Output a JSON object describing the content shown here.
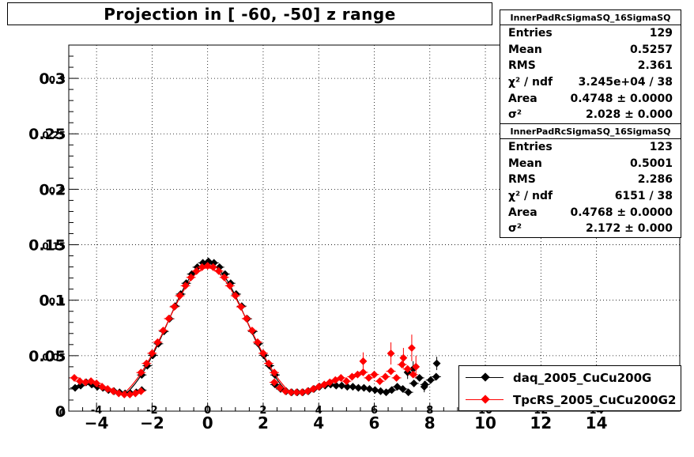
{
  "title": "Projection in [ -60, -50] z range",
  "stats_boxes": [
    {
      "header": "InnerPadRcSigmaSQ_16SigmaSQ",
      "rows": [
        {
          "label": "Entries",
          "value": "129"
        },
        {
          "label": "Mean",
          "value": "0.5257"
        },
        {
          "label": "RMS",
          "value": "2.361"
        },
        {
          "label": "χ² / ndf",
          "value": "3.245e+04 / 38"
        },
        {
          "label": "Area",
          "value": "0.4748 ± 0.0000"
        },
        {
          "label": "σ²",
          "value": "2.028 ± 0.000"
        }
      ]
    },
    {
      "header": "InnerPadRcSigmaSQ_16SigmaSQ",
      "rows": [
        {
          "label": "Entries",
          "value": "123"
        },
        {
          "label": "Mean",
          "value": "0.5001"
        },
        {
          "label": "RMS",
          "value": "2.286"
        },
        {
          "label": "χ² / ndf",
          "value": "6151 / 38"
        },
        {
          "label": "Area",
          "value": "0.4768 ± 0.0000"
        },
        {
          "label": "σ²",
          "value": "2.172 ± 0.000"
        }
      ]
    }
  ],
  "legend": [
    {
      "label": "daq_2005_CuCu200G",
      "color": "#000000"
    },
    {
      "label": "TpcRS_2005_CuCu200G2",
      "color": "#ff0000"
    }
  ],
  "chart_data": {
    "type": "scatter",
    "title": "Projection in [ -60, -50] z range",
    "xlim": [
      -5,
      17
    ],
    "ylim": [
      0,
      0.33
    ],
    "x_ticks_outer": [
      -4,
      -2,
      0,
      2,
      4,
      6,
      8,
      10,
      12,
      14
    ],
    "x_ticks_inner": [
      -4,
      -2,
      0,
      2,
      4,
      6,
      8,
      10,
      12,
      14
    ],
    "y_ticks_inner": [
      0,
      0.05,
      0.1,
      0.15,
      0.2,
      0.25,
      0.3
    ],
    "y_ticks_outer": [
      0,
      0.05,
      0.1,
      0.15,
      0.2,
      0.25,
      0.3
    ],
    "grid": true,
    "series": [
      {
        "name": "daq_2005_CuCu200G",
        "color": "#000000",
        "gauss": {
          "area": 0.4748,
          "sigma2": 2.028,
          "mean": 0.0
        },
        "tail": [
          [
            -4.8,
            0.021
          ],
          [
            -4.6,
            0.023
          ],
          [
            -4.4,
            0.026
          ],
          [
            -4.2,
            0.024
          ],
          [
            -4.0,
            0.022
          ],
          [
            -3.8,
            0.021
          ],
          [
            -3.6,
            0.019
          ],
          [
            -3.4,
            0.018
          ],
          [
            -3.2,
            0.017
          ],
          [
            -3.0,
            0.016
          ],
          [
            -2.8,
            0.016
          ],
          [
            -2.6,
            0.017
          ],
          [
            -2.4,
            0.019
          ],
          [
            2.4,
            0.024
          ],
          [
            2.6,
            0.02
          ],
          [
            2.8,
            0.018
          ],
          [
            3.0,
            0.017
          ],
          [
            3.2,
            0.017
          ],
          [
            3.4,
            0.017
          ],
          [
            3.6,
            0.018
          ],
          [
            3.8,
            0.02
          ],
          [
            4.0,
            0.022
          ],
          [
            4.2,
            0.023
          ],
          [
            4.4,
            0.024
          ],
          [
            4.6,
            0.023
          ],
          [
            4.8,
            0.023
          ],
          [
            5.0,
            0.022
          ],
          [
            5.2,
            0.022
          ],
          [
            5.4,
            0.021
          ],
          [
            5.6,
            0.021
          ],
          [
            5.8,
            0.02
          ],
          [
            6.0,
            0.019
          ],
          [
            6.2,
            0.018
          ],
          [
            6.4,
            0.017
          ],
          [
            6.6,
            0.019
          ],
          [
            6.8,
            0.022
          ],
          [
            7.0,
            0.02
          ],
          [
            7.2,
            0.017
          ],
          [
            7.4,
            0.025
          ],
          [
            7.6,
            0.03
          ],
          [
            7.8,
            0.024
          ],
          [
            8.0,
            0.028
          ],
          [
            8.2,
            0.031
          ]
        ],
        "outliers": [
          [
            7.2,
            0.035,
            0.006
          ],
          [
            7.4,
            0.038,
            0.007
          ],
          [
            7.8,
            0.022,
            0.005
          ],
          [
            8.25,
            0.043,
            0.006
          ]
        ]
      },
      {
        "name": "TpcRS_2005_CuCu200G2",
        "color": "#ff0000",
        "gauss": {
          "area": 0.4768,
          "sigma2": 2.172,
          "mean": 0.0
        },
        "tail": [
          [
            -4.8,
            0.03
          ],
          [
            -4.6,
            0.027
          ],
          [
            -4.4,
            0.026
          ],
          [
            -4.2,
            0.027
          ],
          [
            -4.0,
            0.025
          ],
          [
            -3.8,
            0.022
          ],
          [
            -3.6,
            0.02
          ],
          [
            -3.4,
            0.018
          ],
          [
            -3.2,
            0.016
          ],
          [
            -3.0,
            0.015
          ],
          [
            -2.8,
            0.015
          ],
          [
            -2.6,
            0.016
          ],
          [
            -2.4,
            0.018
          ],
          [
            2.4,
            0.026
          ],
          [
            2.6,
            0.021
          ],
          [
            2.8,
            0.018
          ],
          [
            3.0,
            0.017
          ],
          [
            3.2,
            0.017
          ],
          [
            3.4,
            0.017
          ],
          [
            3.6,
            0.018
          ],
          [
            3.8,
            0.02
          ],
          [
            4.0,
            0.022
          ],
          [
            4.2,
            0.024
          ],
          [
            4.4,
            0.026
          ],
          [
            4.6,
            0.028
          ],
          [
            4.8,
            0.03
          ],
          [
            5.0,
            0.027
          ],
          [
            5.2,
            0.031
          ],
          [
            5.4,
            0.033
          ],
          [
            5.6,
            0.035
          ],
          [
            5.8,
            0.03
          ],
          [
            6.0,
            0.033
          ],
          [
            6.2,
            0.027
          ],
          [
            6.4,
            0.031
          ],
          [
            6.6,
            0.036
          ],
          [
            6.8,
            0.03
          ],
          [
            7.0,
            0.042
          ],
          [
            7.2,
            0.038
          ],
          [
            7.4,
            0.033
          ]
        ],
        "outliers": [
          [
            5.6,
            0.045,
            0.008
          ],
          [
            6.6,
            0.052,
            0.01
          ],
          [
            7.05,
            0.048,
            0.009
          ],
          [
            7.35,
            0.057,
            0.012
          ],
          [
            7.5,
            0.04,
            0.01
          ]
        ]
      }
    ]
  }
}
